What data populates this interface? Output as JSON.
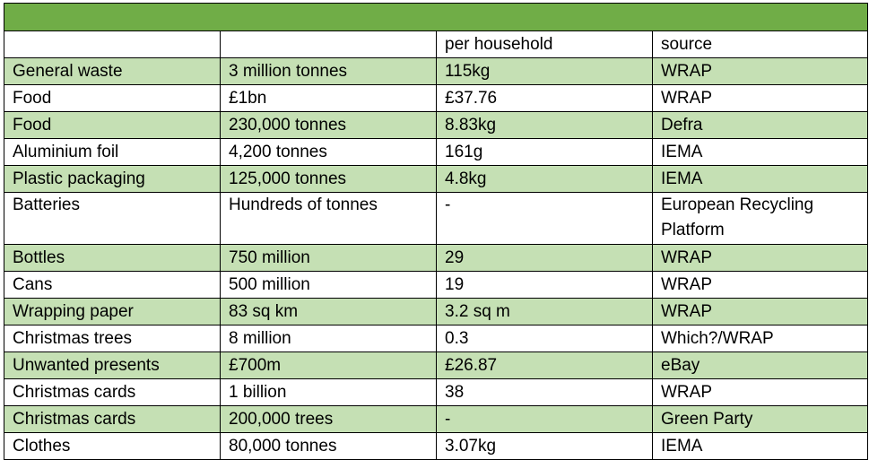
{
  "table": {
    "title": "",
    "headers": [
      "",
      "",
      "per household",
      "source"
    ],
    "rows": [
      [
        "General waste",
        "3 million tonnes",
        "115kg",
        "WRAP"
      ],
      [
        "Food",
        "£1bn",
        "£37.76",
        "WRAP"
      ],
      [
        "Food",
        "230,000 tonnes",
        "8.83kg",
        "Defra"
      ],
      [
        "Aluminium foil",
        "4,200 tonnes",
        "161g",
        "IEMA"
      ],
      [
        "Plastic packaging",
        "125,000 tonnes",
        "4.8kg",
        "IEMA"
      ],
      [
        "Batteries",
        "Hundreds of tonnes",
        "-",
        "European Recycling Platform"
      ],
      [
        "Bottles",
        "750 million",
        "29",
        "WRAP"
      ],
      [
        "Cans",
        "500 million",
        "19",
        "WRAP"
      ],
      [
        "Wrapping paper",
        "83 sq km",
        "3.2 sq m",
        "WRAP"
      ],
      [
        "Christmas trees",
        "8 million",
        "0.3",
        "Which?/WRAP"
      ],
      [
        "Unwanted presents",
        "£700m",
        "£26.87",
        "eBay"
      ],
      [
        "Christmas cards",
        "1 billion",
        "38",
        "WRAP"
      ],
      [
        "Christmas cards",
        "200,000 trees",
        "-",
        "Green Party"
      ],
      [
        "Clothes",
        "80,000 tonnes",
        "3.07kg",
        "IEMA"
      ]
    ],
    "colors": {
      "title_bar": "#70ad47",
      "band": "#c5e0b4",
      "plain": "#ffffff"
    }
  }
}
